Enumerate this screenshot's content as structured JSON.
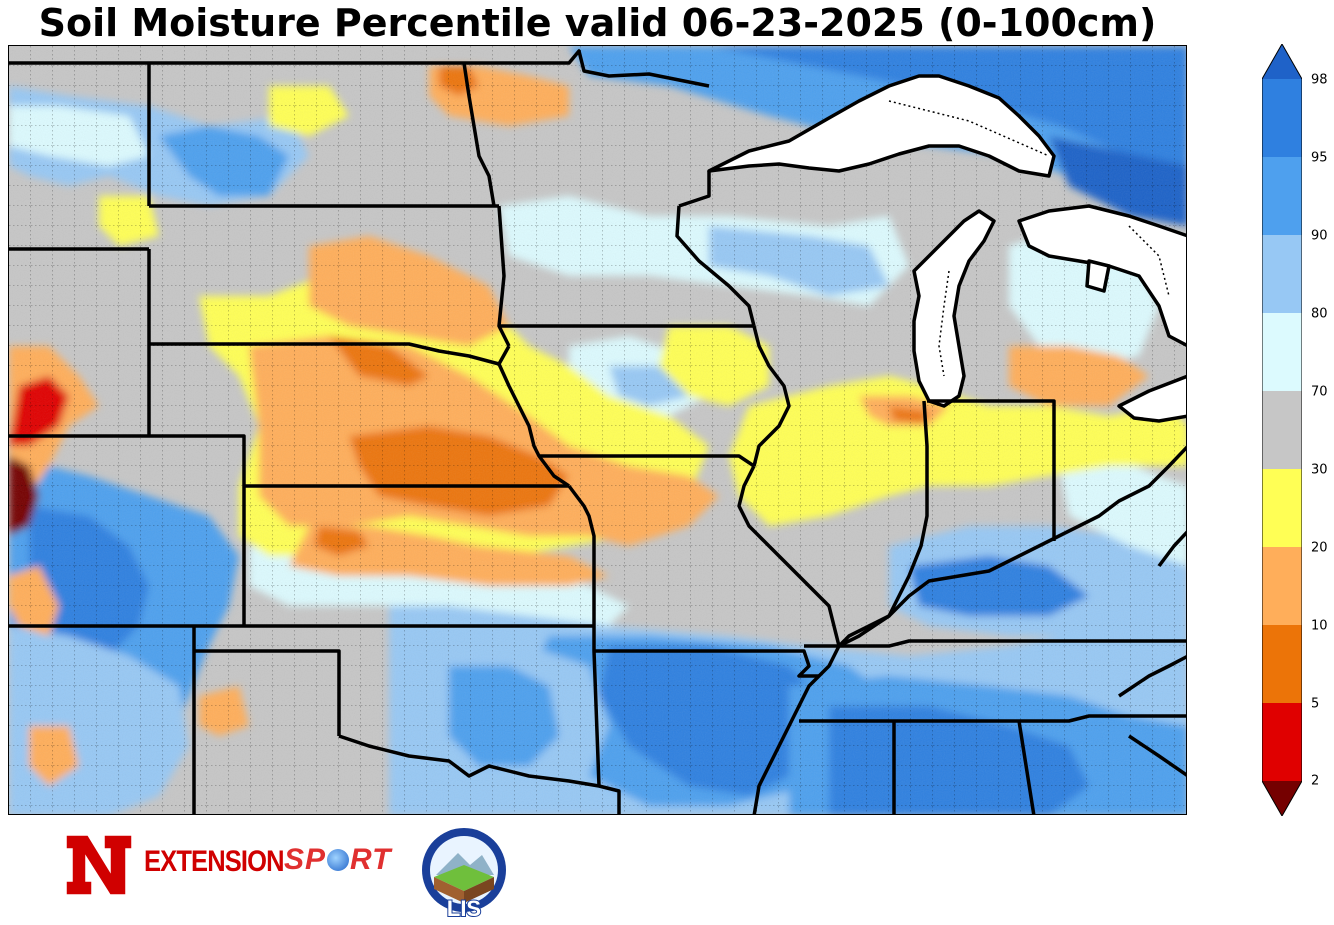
{
  "title": "Soil Moisture Percentile valid 06-23-2025 (0-100cm)",
  "colorbar": {
    "ticks": [
      "98",
      "95",
      "90",
      "80",
      "70",
      "30",
      "20",
      "10",
      "5",
      "2"
    ],
    "colors": {
      "above_98": "#1f62c8",
      "95_98": "#2f80e0",
      "90_95": "#4ea0ee",
      "80_90": "#97c8f4",
      "70_80": "#dcfafe",
      "30_70": "#c6c6c6",
      "20_30": "#ffff55",
      "10_20": "#ffae5a",
      "5_10": "#ec7408",
      "2_5": "#e00000",
      "below_2": "#750000"
    }
  },
  "logos": {
    "extension": "EXTENSION",
    "sport": "SPORT",
    "lis": "LIS",
    "n_logo": "N"
  }
}
